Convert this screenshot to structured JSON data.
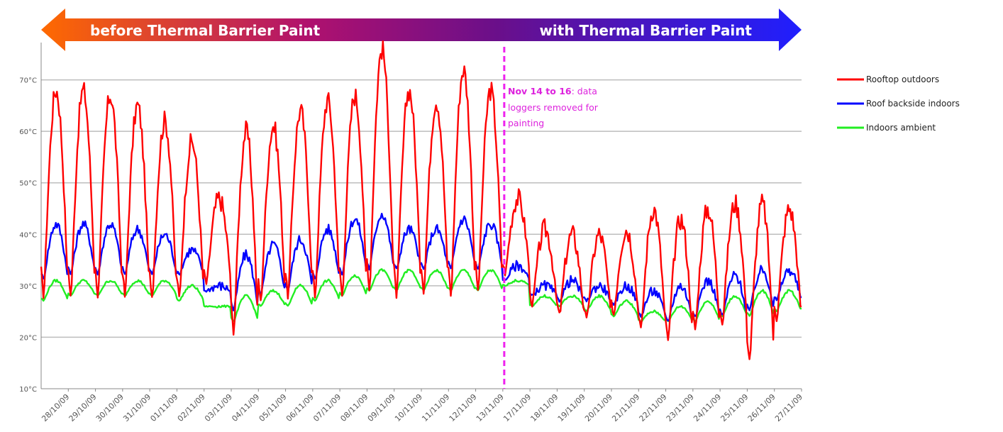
{
  "banner": {
    "left_label": "before Thermal Barrier Paint",
    "right_label": "with Thermal Barrier Paint",
    "gradient": [
      "#ff6a00",
      "#b0116e",
      "#6a0f8a",
      "#1f1fff"
    ]
  },
  "annotation": {
    "line1_bold": "Nov 14 to 16",
    "line1_rest": ": data",
    "line2": "loggers removed for",
    "line3": "painting",
    "color": "#ee22ee"
  },
  "chart_data": {
    "type": "line",
    "title": "",
    "xlabel": "",
    "ylabel": "",
    "ylim": [
      10,
      80
    ],
    "yticks": [
      10,
      20,
      30,
      40,
      50,
      60,
      70
    ],
    "ytick_labels": [
      "10°C",
      "20°C",
      "30°C",
      "40°C",
      "50°C",
      "60°C",
      "70°C"
    ],
    "grid": true,
    "legend_position": "right",
    "categories": [
      "28/10/09",
      "29/10/09",
      "30/10/09",
      "31/10/09",
      "01/11/09",
      "02/11/09",
      "03/11/09",
      "04/11/09",
      "05/11/09",
      "06/11/09",
      "07/11/09",
      "08/11/09",
      "09/11/09",
      "10/11/09",
      "11/11/09",
      "12/11/09",
      "13/11/09",
      "17/11/09",
      "18/11/09",
      "19/11/09",
      "20/11/09",
      "21/11/09",
      "22/11/09",
      "23/11/09",
      "24/11/09",
      "25/11/09",
      "26/11/09",
      "27/11/09"
    ],
    "marker_after_category": "13/11/09",
    "series": [
      {
        "name": "Rooftop outdoors",
        "color": "#ff0000",
        "daily_min": [
          27,
          27,
          27,
          27,
          27,
          27,
          30,
          20,
          26,
          27,
          27,
          27,
          28,
          27,
          28,
          27,
          28,
          32,
          26,
          24,
          23,
          24,
          21,
          19,
          21,
          22,
          15,
          23
        ],
        "daily_max": [
          68,
          68,
          67,
          65,
          62,
          58,
          47,
          60,
          61,
          64,
          66,
          67,
          76,
          68,
          66,
          72,
          68,
          47,
          41,
          40,
          40,
          41,
          45,
          43,
          45,
          46,
          46,
          45
        ]
      },
      {
        "name": "Roof backside indoors",
        "color": "#0000ff",
        "daily_min": [
          31,
          32,
          32,
          32,
          32,
          32,
          29,
          25,
          28,
          29,
          31,
          32,
          33,
          33,
          33,
          33,
          33,
          31,
          28,
          27,
          27,
          26,
          24,
          23,
          24,
          24,
          25,
          27
        ],
        "daily_max": [
          42,
          42,
          42,
          41,
          40,
          37,
          30,
          36,
          38,
          39,
          41,
          43,
          44,
          41,
          41,
          43,
          42,
          34,
          30,
          31,
          30,
          30,
          29,
          30,
          31,
          32,
          33,
          33
        ]
      },
      {
        "name": "Indoors ambient",
        "color": "#22ee22",
        "daily_min": [
          27,
          28,
          28,
          28,
          28,
          27,
          26,
          23,
          26,
          26,
          27,
          28,
          29,
          29,
          29,
          29,
          29,
          30,
          26,
          26,
          25,
          24,
          23,
          23,
          23,
          24,
          24,
          25
        ],
        "daily_max": [
          31,
          31,
          31,
          31,
          31,
          30,
          26,
          28,
          29,
          30,
          31,
          32,
          33,
          33,
          33,
          33,
          33,
          31,
          28,
          28,
          28,
          27,
          25,
          26,
          27,
          28,
          29,
          29
        ]
      }
    ]
  }
}
